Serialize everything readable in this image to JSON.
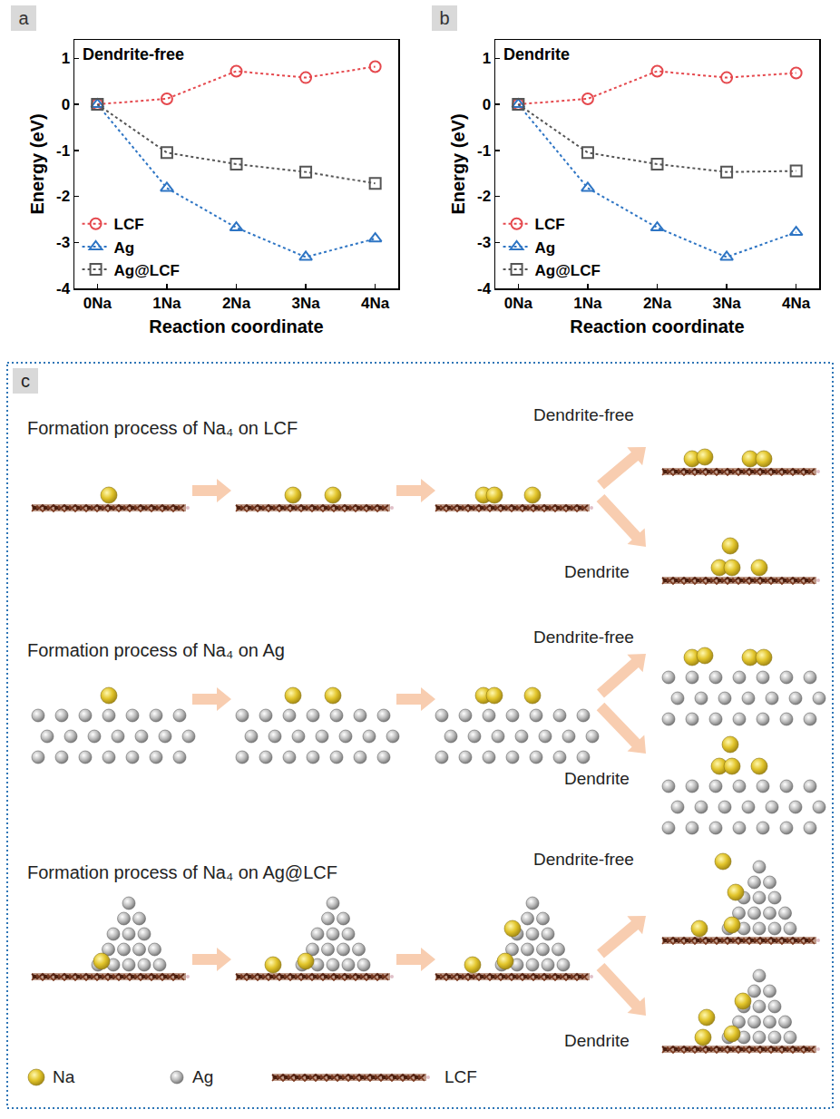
{
  "chart_data": [
    {
      "panel": "a",
      "type": "line",
      "annotation": "Dendrite-free",
      "x_label": "Reaction coordinate",
      "y_label": "Energy (eV)",
      "categories": [
        "0Na",
        "1Na",
        "2Na",
        "3Na",
        "4Na"
      ],
      "ylim": [
        -4,
        1.4
      ],
      "yticks": [
        -4,
        -3,
        -2,
        -1,
        0,
        1
      ],
      "grid": false,
      "legend": "lower left",
      "series": [
        {
          "name": "LCF",
          "color": "#e5484d",
          "marker": "circle-open",
          "line_style": "dotted",
          "values": [
            0,
            0.12,
            0.72,
            0.58,
            0.82
          ]
        },
        {
          "name": "Ag",
          "color": "#2e75c4",
          "marker": "triangle-up-open",
          "line_style": "dotted",
          "values": [
            0,
            -1.82,
            -2.68,
            -3.32,
            -2.92
          ]
        },
        {
          "name": "Ag@LCF",
          "color": "#555555",
          "marker": "square-open",
          "line_style": "dotted",
          "values": [
            0,
            -1.05,
            -1.3,
            -1.47,
            -1.72
          ]
        }
      ]
    },
    {
      "panel": "b",
      "type": "line",
      "annotation": "Dendrite",
      "x_label": "Reaction coordinate",
      "y_label": "Energy (eV)",
      "categories": [
        "0Na",
        "1Na",
        "2Na",
        "3Na",
        "4Na"
      ],
      "ylim": [
        -4,
        1.4
      ],
      "yticks": [
        -4,
        -3,
        -2,
        -1,
        0,
        1
      ],
      "grid": false,
      "legend": "lower left",
      "series": [
        {
          "name": "LCF",
          "color": "#e5484d",
          "marker": "circle-open",
          "line_style": "dotted",
          "values": [
            0,
            0.12,
            0.72,
            0.58,
            0.68
          ]
        },
        {
          "name": "Ag",
          "color": "#2e75c4",
          "marker": "triangle-up-open",
          "line_style": "dotted",
          "values": [
            0,
            -1.82,
            -2.68,
            -3.32,
            -2.78
          ]
        },
        {
          "name": "Ag@LCF",
          "color": "#555555",
          "marker": "square-open",
          "line_style": "dotted",
          "values": [
            0,
            -1.05,
            -1.3,
            -1.47,
            -1.45
          ]
        }
      ]
    }
  ],
  "diagram": {
    "panel": "c",
    "rows": [
      {
        "title": "Formation process of Na₄ on LCF",
        "substrate": "LCF",
        "branches": [
          "Dendrite-free",
          "Dendrite"
        ]
      },
      {
        "title": "Formation process of Na₄ on Ag",
        "substrate": "Ag",
        "branches": [
          "Dendrite-free",
          "Dendrite"
        ]
      },
      {
        "title": "Formation process of Na₄ on Ag@LCF",
        "substrate": "Ag@LCF",
        "branches": [
          "Dendrite-free",
          "Dendrite"
        ]
      }
    ],
    "legend": [
      "Na",
      "Ag",
      "LCF"
    ]
  }
}
